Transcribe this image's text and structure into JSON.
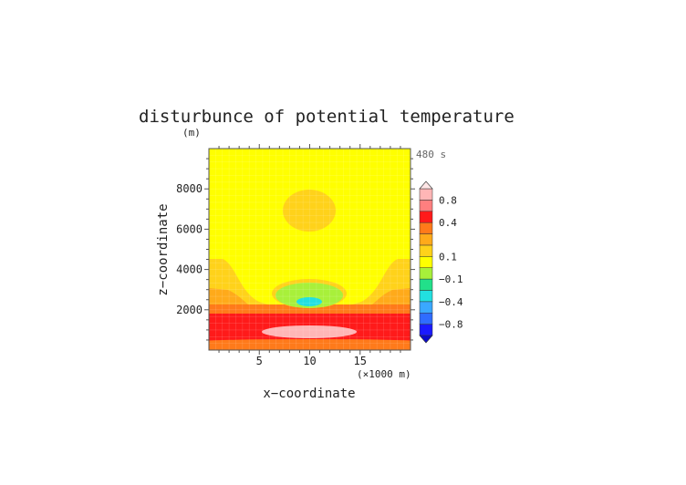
{
  "chart_data": {
    "type": "heatmap",
    "title": "disturbunce of potential temperature",
    "y_unit": "(m)",
    "time_label": "480 s",
    "xlabel": "x−coordinate",
    "ylabel": "z−coordinate",
    "x_unit": "(×1000 m)",
    "xlim": [
      0,
      20
    ],
    "ylim": [
      0,
      10000
    ],
    "x_ticks": [
      5,
      10,
      15
    ],
    "x_tick_labels": [
      "5",
      "10",
      "15"
    ],
    "y_ticks": [
      2000,
      4000,
      6000,
      8000
    ],
    "y_tick_labels": [
      "2000",
      "4000",
      "6000",
      "8000"
    ],
    "color_levels": [
      -1.0,
      -0.8,
      -0.6,
      -0.4,
      -0.2,
      -0.1,
      0,
      0.1,
      0.2,
      0.3,
      0.4,
      0.6,
      0.8,
      1.0
    ],
    "colorbar_labels": [
      "0.8",
      "0.4",
      "0.1",
      "−0.1",
      "−0.4",
      "−0.8"
    ],
    "colorbar_colors": [
      "#1a1aff",
      "#2f6cff",
      "#3aa8ff",
      "#22e0e0",
      "#22e08a",
      "#a8f03a",
      "#ffff00",
      "#ffd21a",
      "#ffaa1a",
      "#ff7a1a",
      "#ff1a1a",
      "#ff7f7f",
      "#ffb6b6"
    ],
    "field_summary": [
      {
        "region": "background",
        "value": 0.05
      },
      {
        "region": "upper warm patch near x=10 km, z=7000 m",
        "value": 0.12
      },
      {
        "region": "cold core near x=10 km, z=2400 m",
        "value": -0.45
      },
      {
        "region": "warm layer z=500–1800 m",
        "value": 0.5
      },
      {
        "region": "warm core near x=10 km, z=900 m",
        "value": 0.9
      }
    ]
  }
}
